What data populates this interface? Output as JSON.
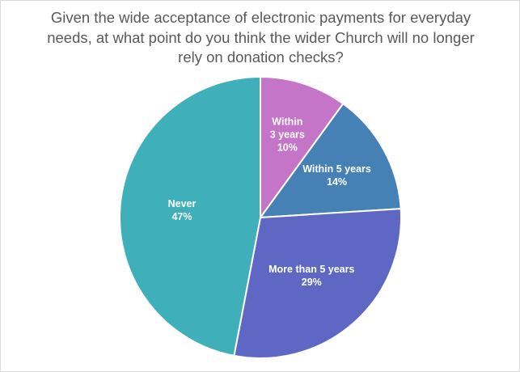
{
  "chart_data": {
    "type": "pie",
    "title_lines": [
      "Given the wide acceptance of electronic payments for everyday",
      "needs, at what point do you think the wider Church will no longer",
      "rely on donation checks?"
    ],
    "slices": [
      {
        "label_lines": [
          "Within",
          "3 years"
        ],
        "value": 10,
        "value_label": "10%",
        "color": "#C475C8"
      },
      {
        "label_lines": [
          "Within 5 years"
        ],
        "value": 14,
        "value_label": "14%",
        "color": "#4581B4"
      },
      {
        "label_lines": [
          "More than 5 years"
        ],
        "value": 29,
        "value_label": "29%",
        "color": "#5E68C4"
      },
      {
        "label_lines": [
          "Never"
        ],
        "value": 47,
        "value_label": "47%",
        "color": "#3FAFB9"
      }
    ],
    "start_angle": "12 o'clock",
    "direction": "clockwise",
    "legend": "none"
  }
}
